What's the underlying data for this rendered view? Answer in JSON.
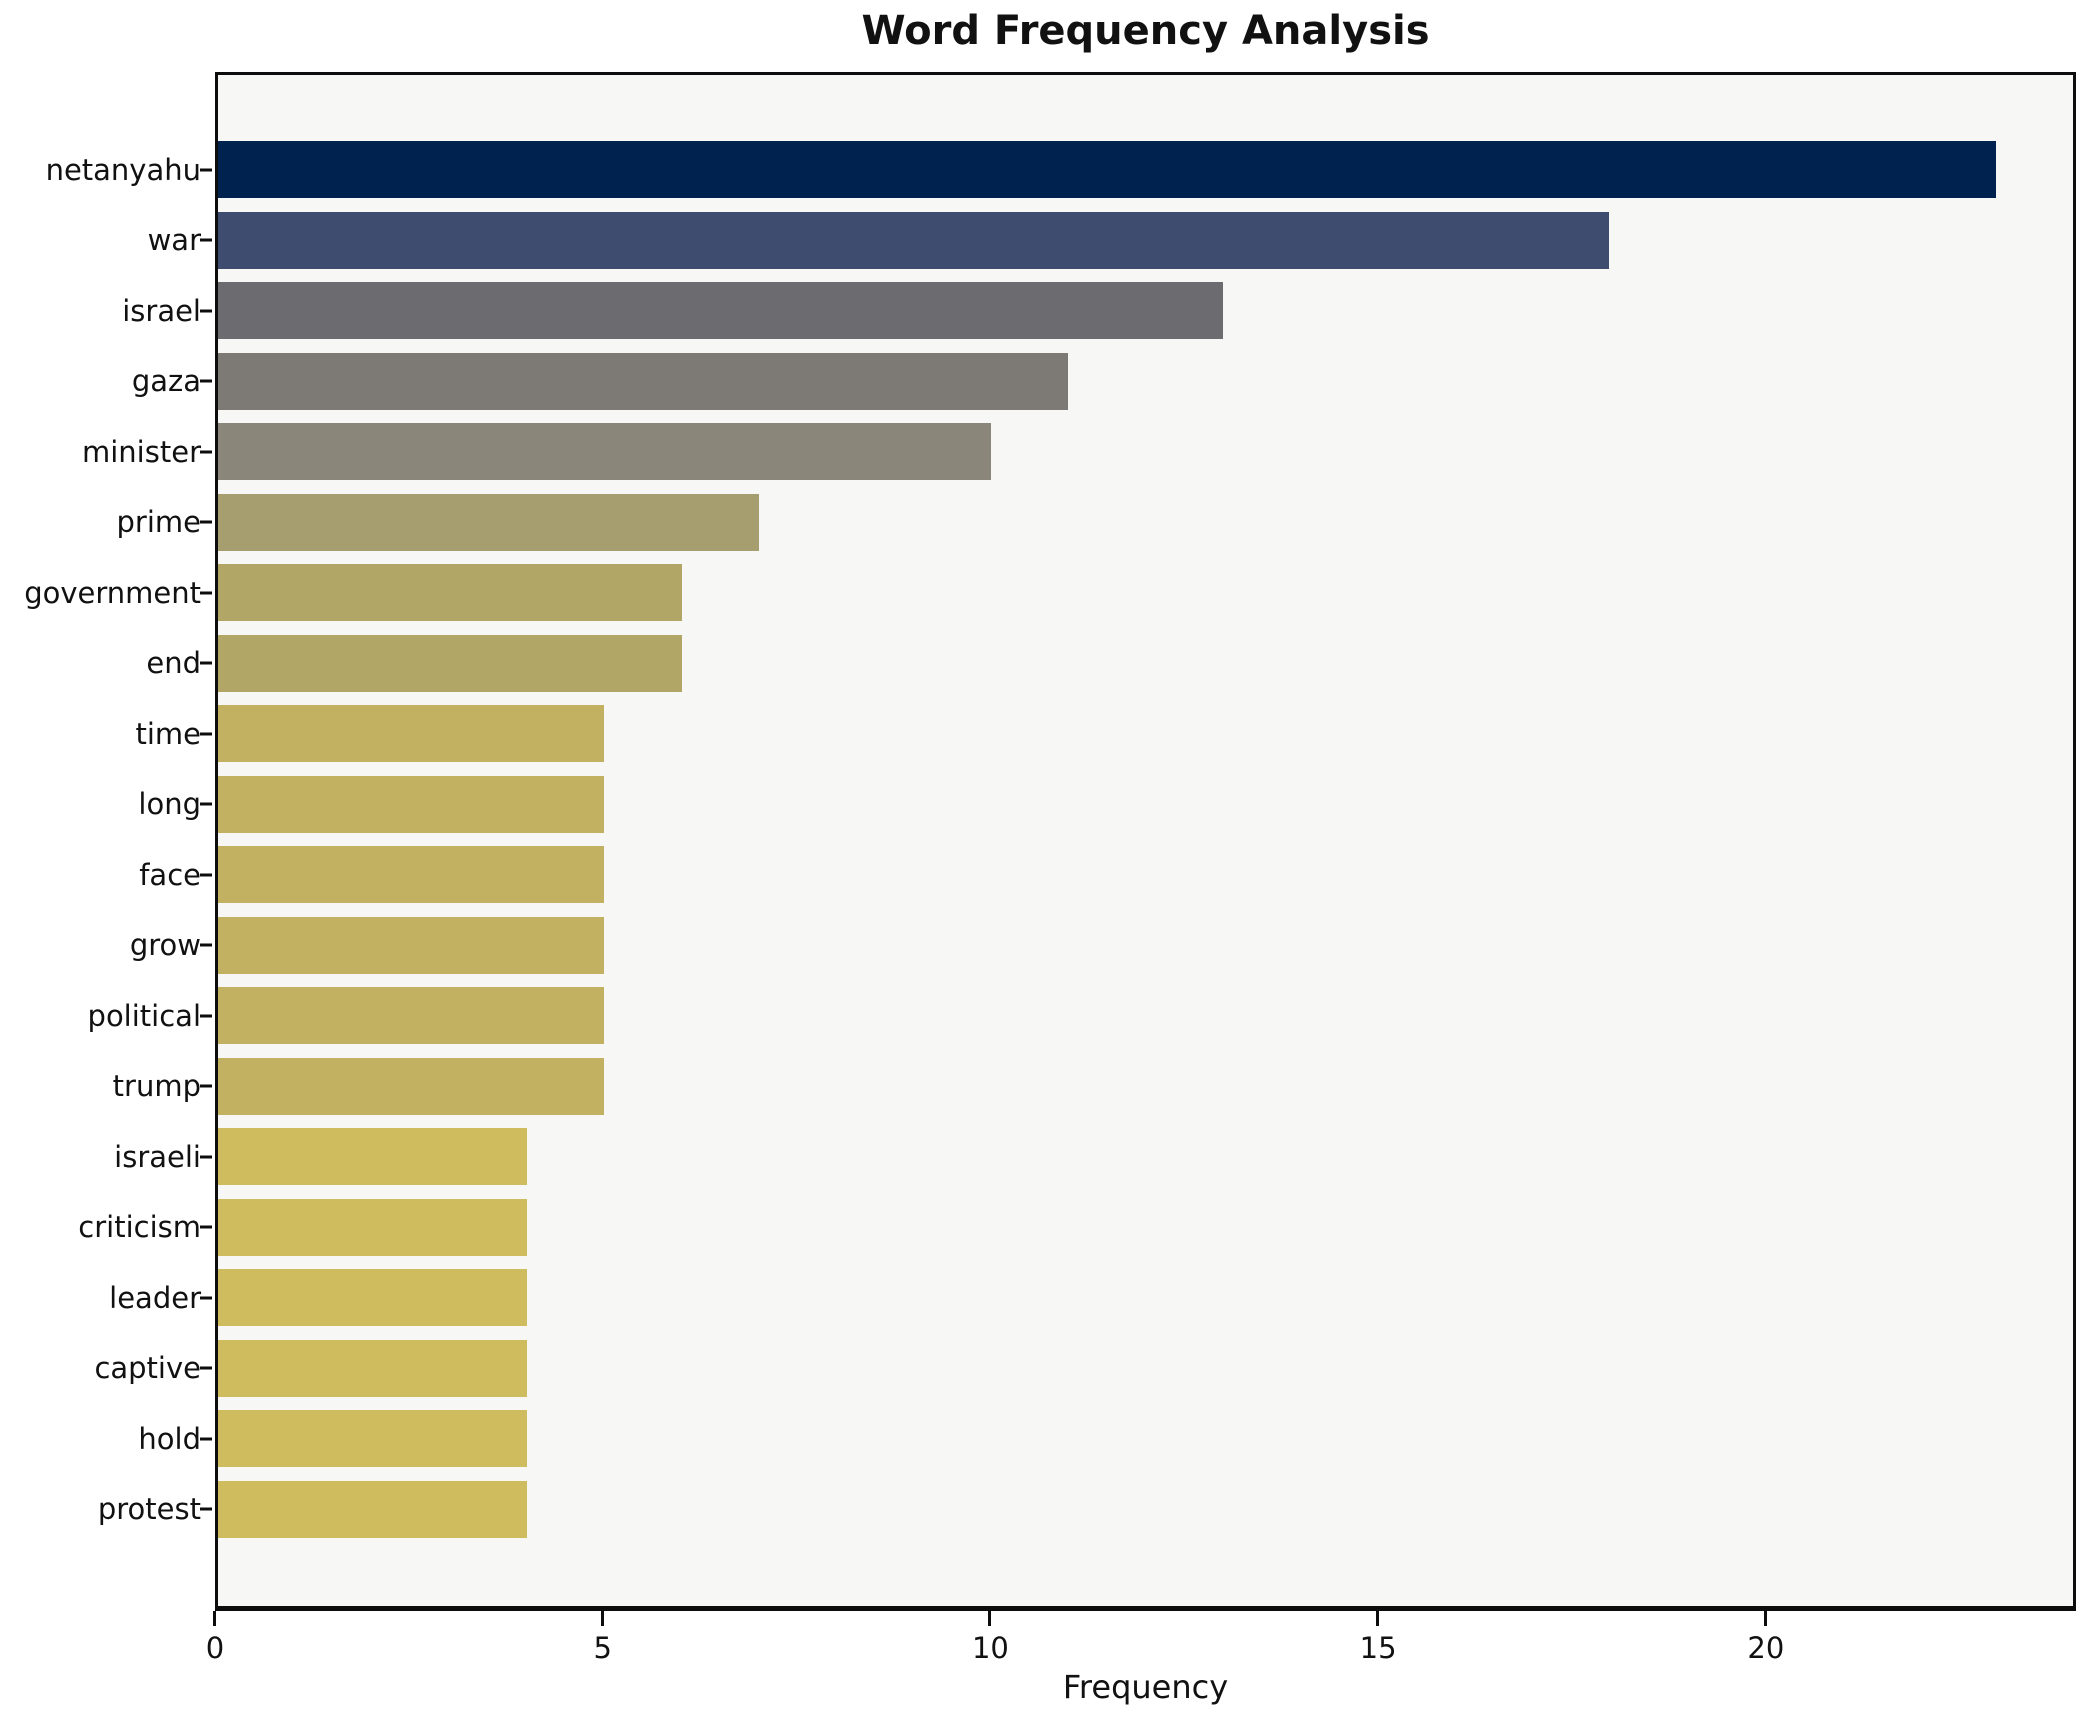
{
  "chart_data": {
    "type": "bar",
    "orientation": "horizontal",
    "title": "Word Frequency Analysis",
    "xlabel": "Frequency",
    "ylabel": "",
    "xlim": [
      0,
      24
    ],
    "xticks": [
      0,
      5,
      10,
      15,
      20
    ],
    "grid": false,
    "legend": false,
    "plot_background": "#f7f7f5",
    "figure_background": "#ffffff",
    "spine_color": "#0d0d0d",
    "categories": [
      "netanyahu",
      "war",
      "israel",
      "gaza",
      "minister",
      "prime",
      "government",
      "end",
      "time",
      "long",
      "face",
      "grow",
      "political",
      "trump",
      "israeli",
      "criticism",
      "leader",
      "captive",
      "hold",
      "protest"
    ],
    "values": [
      23,
      18,
      13,
      11,
      10,
      7,
      6,
      6,
      5,
      5,
      5,
      5,
      5,
      5,
      4,
      4,
      4,
      4,
      4,
      4
    ],
    "bar_colors": [
      "#00224e",
      "#3e4c70",
      "#6c6c70",
      "#7d7a75",
      "#8a877a",
      "#a79e6f",
      "#b2a667",
      "#b2a667",
      "#c2b161",
      "#c2b161",
      "#c2b161",
      "#c2b161",
      "#c2b161",
      "#c2b161",
      "#cfbc5f",
      "#cfbc5f",
      "#cfbc5f",
      "#cfbc5f",
      "#cfbc5f",
      "#cfbc5f"
    ]
  }
}
